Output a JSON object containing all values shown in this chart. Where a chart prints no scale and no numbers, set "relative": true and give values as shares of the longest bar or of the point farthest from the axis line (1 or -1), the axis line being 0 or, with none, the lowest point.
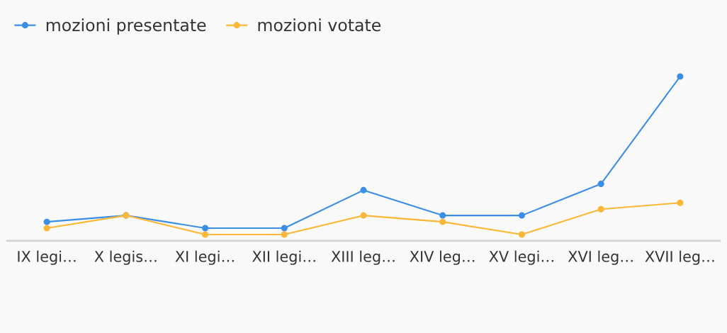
{
  "chart_data": {
    "type": "line",
    "relative": true,
    "categories": [
      "IX legi…",
      "X legis…",
      "XI legi…",
      "XII legi…",
      "XIII leg…",
      "XIV leg…",
      "XV legi…",
      "XVI leg…",
      "XVII leg…"
    ],
    "series": [
      {
        "name": "mozioni presentate",
        "color": "#3a8ee6",
        "values": [
          0.115,
          0.154,
          0.077,
          0.077,
          0.308,
          0.154,
          0.154,
          0.346,
          1
        ]
      },
      {
        "name": "mozioni votate",
        "color": "#fbb735",
        "values": [
          0.077,
          0.154,
          0.038,
          0.038,
          0.154,
          0.115,
          0.038,
          0.192,
          0.231
        ]
      }
    ],
    "marker": "circle",
    "line_style": "solid",
    "legend": "top left",
    "grid": false,
    "tick_labels": "x"
  }
}
